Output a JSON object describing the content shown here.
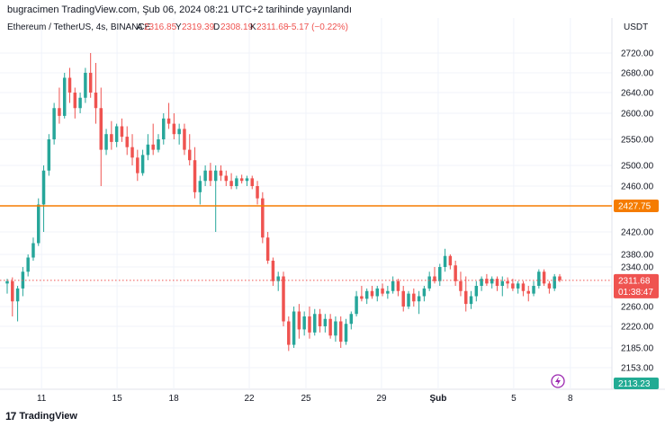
{
  "header": {
    "publish_line": "bugracimen TradingView.com, Şub 06, 2024 08:21 UTC+2 tarihinde yayınlandı"
  },
  "legend": {
    "symbol": "Ethereum / TetherUS, 4s, BINANCE",
    "o_label": "A",
    "o_value": "2316.85",
    "h_label": "Y",
    "h_value": "2319.39",
    "l_label": "D",
    "l_value": "2308.19",
    "c_label": "K",
    "c_value": "2311.68",
    "change": "−5.17 (−0.22%)"
  },
  "colors": {
    "up": "#26a69a",
    "down": "#ef5350",
    "level": "#f57c00",
    "last": "#ef5350",
    "pane": "#22ab94",
    "grid": "#f0f3fa"
  },
  "footer": {
    "brand": "TradingView",
    "logo_glyph": "17"
  },
  "lightning_icon": "lightning-icon",
  "chart_data": {
    "type": "candlestick",
    "unit_label": "USDT",
    "y_ticks": [
      "2720.00",
      "2680.00",
      "2640.00",
      "2600.00",
      "2550.00",
      "2500.00",
      "2460.00",
      "2420.00",
      "2380.00",
      "2340.00",
      "2300.00",
      "2260.00",
      "2220.00",
      "2185.00",
      "2153.00"
    ],
    "x_ticks": [
      {
        "label": "11",
        "day": 11
      },
      {
        "label": "15",
        "day": 15
      },
      {
        "label": "18",
        "day": 18
      },
      {
        "label": "22",
        "day": 22
      },
      {
        "label": "25",
        "day": 25
      },
      {
        "label": "29",
        "day": 29
      },
      {
        "label": "Şub",
        "day": 32,
        "bold": true
      },
      {
        "label": "5",
        "day": 36
      },
      {
        "label": "8",
        "day": 39
      }
    ],
    "x_range_days": [
      8.8,
      41.2
    ],
    "scale_anchors": [
      [
        2153,
        2153
      ],
      [
        2185,
        2185
      ],
      [
        2220,
        2220
      ],
      [
        2260,
        2260
      ],
      [
        2300,
        2300
      ],
      [
        2340,
        2340
      ],
      [
        2380,
        2380
      ],
      [
        2427.75,
        2427.75
      ],
      [
        2460,
        2460
      ],
      [
        2500,
        2500
      ],
      [
        2550,
        2550
      ],
      [
        2600,
        2600
      ],
      [
        2640,
        2640
      ],
      [
        2680,
        2680
      ],
      [
        2720,
        2720
      ]
    ],
    "horizontal_line": {
      "value": 2427.75,
      "label": "2427.75"
    },
    "last_price": {
      "value": 2311.68,
      "label": "2311.68",
      "countdown": "01:38:47"
    },
    "bottom_badge": {
      "value": 2113.23,
      "label": "2113.23"
    },
    "candles": [
      {
        "o": 2305,
        "h": 2315,
        "l": 2285,
        "c": 2310
      },
      {
        "o": 2310,
        "h": 2318,
        "l": 2240,
        "c": 2270
      },
      {
        "o": 2270,
        "h": 2300,
        "l": 2230,
        "c": 2295
      },
      {
        "o": 2295,
        "h": 2340,
        "l": 2280,
        "c": 2330
      },
      {
        "o": 2330,
        "h": 2380,
        "l": 2320,
        "c": 2370
      },
      {
        "o": 2370,
        "h": 2410,
        "l": 2360,
        "c": 2400
      },
      {
        "o": 2400,
        "h": 2440,
        "l": 2395,
        "c": 2430
      },
      {
        "o": 2430,
        "h": 2500,
        "l": 2420,
        "c": 2490
      },
      {
        "o": 2490,
        "h": 2560,
        "l": 2480,
        "c": 2550
      },
      {
        "o": 2550,
        "h": 2620,
        "l": 2540,
        "c": 2610
      },
      {
        "o": 2610,
        "h": 2650,
        "l": 2580,
        "c": 2595
      },
      {
        "o": 2595,
        "h": 2680,
        "l": 2590,
        "c": 2670
      },
      {
        "o": 2670,
        "h": 2690,
        "l": 2620,
        "c": 2640
      },
      {
        "o": 2640,
        "h": 2650,
        "l": 2590,
        "c": 2610
      },
      {
        "o": 2610,
        "h": 2640,
        "l": 2600,
        "c": 2630
      },
      {
        "o": 2630,
        "h": 2690,
        "l": 2620,
        "c": 2680
      },
      {
        "o": 2680,
        "h": 2720,
        "l": 2630,
        "c": 2640
      },
      {
        "o": 2640,
        "h": 2700,
        "l": 2580,
        "c": 2610
      },
      {
        "o": 2610,
        "h": 2650,
        "l": 2460,
        "c": 2530
      },
      {
        "o": 2530,
        "h": 2570,
        "l": 2520,
        "c": 2560
      },
      {
        "o": 2560,
        "h": 2585,
        "l": 2530,
        "c": 2545
      },
      {
        "o": 2545,
        "h": 2580,
        "l": 2535,
        "c": 2575
      },
      {
        "o": 2575,
        "h": 2590,
        "l": 2545,
        "c": 2555
      },
      {
        "o": 2555,
        "h": 2575,
        "l": 2520,
        "c": 2535
      },
      {
        "o": 2535,
        "h": 2560,
        "l": 2500,
        "c": 2515
      },
      {
        "o": 2515,
        "h": 2530,
        "l": 2470,
        "c": 2485
      },
      {
        "o": 2485,
        "h": 2530,
        "l": 2480,
        "c": 2520
      },
      {
        "o": 2520,
        "h": 2560,
        "l": 2510,
        "c": 2540
      },
      {
        "o": 2540,
        "h": 2580,
        "l": 2520,
        "c": 2530
      },
      {
        "o": 2530,
        "h": 2560,
        "l": 2525,
        "c": 2550
      },
      {
        "o": 2550,
        "h": 2600,
        "l": 2540,
        "c": 2590
      },
      {
        "o": 2590,
        "h": 2620,
        "l": 2570,
        "c": 2580
      },
      {
        "o": 2580,
        "h": 2600,
        "l": 2550,
        "c": 2560
      },
      {
        "o": 2560,
        "h": 2580,
        "l": 2540,
        "c": 2570
      },
      {
        "o": 2570,
        "h": 2580,
        "l": 2520,
        "c": 2530
      },
      {
        "o": 2530,
        "h": 2560,
        "l": 2500,
        "c": 2510
      },
      {
        "o": 2510,
        "h": 2535,
        "l": 2440,
        "c": 2450
      },
      {
        "o": 2450,
        "h": 2480,
        "l": 2430,
        "c": 2470
      },
      {
        "o": 2470,
        "h": 2500,
        "l": 2460,
        "c": 2490
      },
      {
        "o": 2490,
        "h": 2505,
        "l": 2460,
        "c": 2470
      },
      {
        "o": 2470,
        "h": 2500,
        "l": 2420,
        "c": 2490
      },
      {
        "o": 2490,
        "h": 2500,
        "l": 2470,
        "c": 2480
      },
      {
        "o": 2480,
        "h": 2490,
        "l": 2460,
        "c": 2470
      },
      {
        "o": 2470,
        "h": 2485,
        "l": 2455,
        "c": 2460
      },
      {
        "o": 2460,
        "h": 2480,
        "l": 2455,
        "c": 2475
      },
      {
        "o": 2475,
        "h": 2482,
        "l": 2465,
        "c": 2470
      },
      {
        "o": 2470,
        "h": 2480,
        "l": 2460,
        "c": 2475
      },
      {
        "o": 2475,
        "h": 2480,
        "l": 2455,
        "c": 2460
      },
      {
        "o": 2460,
        "h": 2470,
        "l": 2430,
        "c": 2440
      },
      {
        "o": 2440,
        "h": 2450,
        "l": 2400,
        "c": 2410
      },
      {
        "o": 2410,
        "h": 2420,
        "l": 2350,
        "c": 2360
      },
      {
        "o": 2360,
        "h": 2370,
        "l": 2300,
        "c": 2310
      },
      {
        "o": 2310,
        "h": 2330,
        "l": 2290,
        "c": 2320
      },
      {
        "o": 2320,
        "h": 2330,
        "l": 2220,
        "c": 2230
      },
      {
        "o": 2230,
        "h": 2240,
        "l": 2180,
        "c": 2190
      },
      {
        "o": 2190,
        "h": 2260,
        "l": 2185,
        "c": 2250
      },
      {
        "o": 2250,
        "h": 2265,
        "l": 2200,
        "c": 2215
      },
      {
        "o": 2215,
        "h": 2250,
        "l": 2205,
        "c": 2240
      },
      {
        "o": 2240,
        "h": 2260,
        "l": 2200,
        "c": 2210
      },
      {
        "o": 2210,
        "h": 2255,
        "l": 2205,
        "c": 2245
      },
      {
        "o": 2245,
        "h": 2255,
        "l": 2210,
        "c": 2220
      },
      {
        "o": 2220,
        "h": 2245,
        "l": 2210,
        "c": 2235
      },
      {
        "o": 2235,
        "h": 2245,
        "l": 2200,
        "c": 2205
      },
      {
        "o": 2205,
        "h": 2240,
        "l": 2195,
        "c": 2230
      },
      {
        "o": 2230,
        "h": 2240,
        "l": 2185,
        "c": 2195
      },
      {
        "o": 2195,
        "h": 2235,
        "l": 2190,
        "c": 2225
      },
      {
        "o": 2225,
        "h": 2250,
        "l": 2215,
        "c": 2245
      },
      {
        "o": 2245,
        "h": 2290,
        "l": 2240,
        "c": 2280
      },
      {
        "o": 2280,
        "h": 2300,
        "l": 2270,
        "c": 2275
      },
      {
        "o": 2275,
        "h": 2295,
        "l": 2265,
        "c": 2290
      },
      {
        "o": 2290,
        "h": 2300,
        "l": 2275,
        "c": 2280
      },
      {
        "o": 2280,
        "h": 2300,
        "l": 2270,
        "c": 2295
      },
      {
        "o": 2295,
        "h": 2305,
        "l": 2280,
        "c": 2285
      },
      {
        "o": 2285,
        "h": 2300,
        "l": 2275,
        "c": 2290
      },
      {
        "o": 2290,
        "h": 2320,
        "l": 2285,
        "c": 2310
      },
      {
        "o": 2310,
        "h": 2315,
        "l": 2280,
        "c": 2290
      },
      {
        "o": 2290,
        "h": 2300,
        "l": 2250,
        "c": 2260
      },
      {
        "o": 2260,
        "h": 2290,
        "l": 2255,
        "c": 2285
      },
      {
        "o": 2285,
        "h": 2295,
        "l": 2260,
        "c": 2270
      },
      {
        "o": 2270,
        "h": 2290,
        "l": 2245,
        "c": 2280
      },
      {
        "o": 2280,
        "h": 2300,
        "l": 2270,
        "c": 2295
      },
      {
        "o": 2295,
        "h": 2330,
        "l": 2290,
        "c": 2320
      },
      {
        "o": 2320,
        "h": 2340,
        "l": 2305,
        "c": 2310
      },
      {
        "o": 2310,
        "h": 2350,
        "l": 2300,
        "c": 2340
      },
      {
        "o": 2340,
        "h": 2390,
        "l": 2330,
        "c": 2375
      },
      {
        "o": 2375,
        "h": 2380,
        "l": 2335,
        "c": 2345
      },
      {
        "o": 2345,
        "h": 2360,
        "l": 2300,
        "c": 2310
      },
      {
        "o": 2310,
        "h": 2330,
        "l": 2280,
        "c": 2290
      },
      {
        "o": 2290,
        "h": 2320,
        "l": 2250,
        "c": 2265
      },
      {
        "o": 2265,
        "h": 2290,
        "l": 2255,
        "c": 2280
      },
      {
        "o": 2280,
        "h": 2310,
        "l": 2270,
        "c": 2300
      },
      {
        "o": 2300,
        "h": 2320,
        "l": 2290,
        "c": 2315
      },
      {
        "o": 2315,
        "h": 2325,
        "l": 2300,
        "c": 2305
      },
      {
        "o": 2305,
        "h": 2320,
        "l": 2295,
        "c": 2315
      },
      {
        "o": 2315,
        "h": 2320,
        "l": 2290,
        "c": 2300
      },
      {
        "o": 2300,
        "h": 2320,
        "l": 2280,
        "c": 2310
      },
      {
        "o": 2310,
        "h": 2318,
        "l": 2295,
        "c": 2305
      },
      {
        "o": 2305,
        "h": 2315,
        "l": 2290,
        "c": 2295
      },
      {
        "o": 2295,
        "h": 2310,
        "l": 2285,
        "c": 2305
      },
      {
        "o": 2305,
        "h": 2310,
        "l": 2280,
        "c": 2290
      },
      {
        "o": 2290,
        "h": 2300,
        "l": 2270,
        "c": 2285
      },
      {
        "o": 2285,
        "h": 2310,
        "l": 2280,
        "c": 2300
      },
      {
        "o": 2300,
        "h": 2335,
        "l": 2295,
        "c": 2330
      },
      {
        "o": 2330,
        "h": 2335,
        "l": 2300,
        "c": 2305
      },
      {
        "o": 2305,
        "h": 2310,
        "l": 2285,
        "c": 2295
      },
      {
        "o": 2295,
        "h": 2325,
        "l": 2290,
        "c": 2320
      },
      {
        "o": 2320,
        "h": 2325,
        "l": 2308,
        "c": 2312
      }
    ]
  }
}
